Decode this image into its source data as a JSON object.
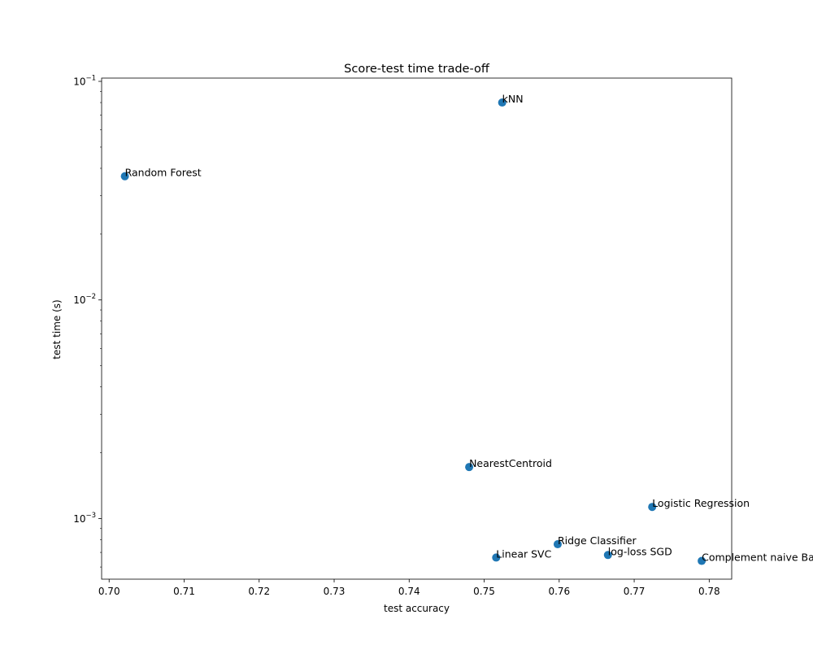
{
  "chart_data": {
    "type": "scatter",
    "title": "Score-test time trade-off",
    "xlabel": "test accuracy",
    "ylabel": "test time (s)",
    "xlim": [
      0.699,
      0.783
    ],
    "ylim": [
      0.000528,
      0.1035
    ],
    "y_scale": "log",
    "grid": false,
    "marker_color": "#1f77b4",
    "x_ticks": [
      0.7,
      0.71,
      0.72,
      0.73,
      0.74,
      0.75,
      0.76,
      0.77,
      0.78
    ],
    "x_tick_labels": [
      "0.70",
      "0.71",
      "0.72",
      "0.73",
      "0.74",
      "0.75",
      "0.76",
      "0.77",
      "0.78"
    ],
    "y_major_ticks": [
      {
        "value": 0.1,
        "base": "10",
        "exp": "−1"
      },
      {
        "value": 0.01,
        "base": "10",
        "exp": "−2"
      },
      {
        "value": 0.001,
        "base": "10",
        "exp": "−3"
      }
    ],
    "y_minor_ticks": [
      0.09,
      0.08,
      0.07,
      0.06,
      0.05,
      0.04,
      0.03,
      0.02,
      0.009,
      0.008,
      0.007,
      0.006,
      0.005,
      0.004,
      0.003,
      0.002,
      0.0009,
      0.0008,
      0.0007,
      0.0006
    ],
    "points": [
      {
        "label": "kNN",
        "x": 0.7524,
        "y": 0.08
      },
      {
        "label": "Random Forest",
        "x": 0.7021,
        "y": 0.0368
      },
      {
        "label": "NearestCentroid",
        "x": 0.748,
        "y": 0.00172
      },
      {
        "label": "Logistic Regression",
        "x": 0.7724,
        "y": 0.00113
      },
      {
        "label": "Ridge Classifier",
        "x": 0.7598,
        "y": 0.000763
      },
      {
        "label": "log-loss SGD",
        "x": 0.7665,
        "y": 0.000681
      },
      {
        "label": "Linear SVC",
        "x": 0.7516,
        "y": 0.000663
      },
      {
        "label": "Complement naive Bayes",
        "x": 0.779,
        "y": 0.00064
      }
    ]
  }
}
